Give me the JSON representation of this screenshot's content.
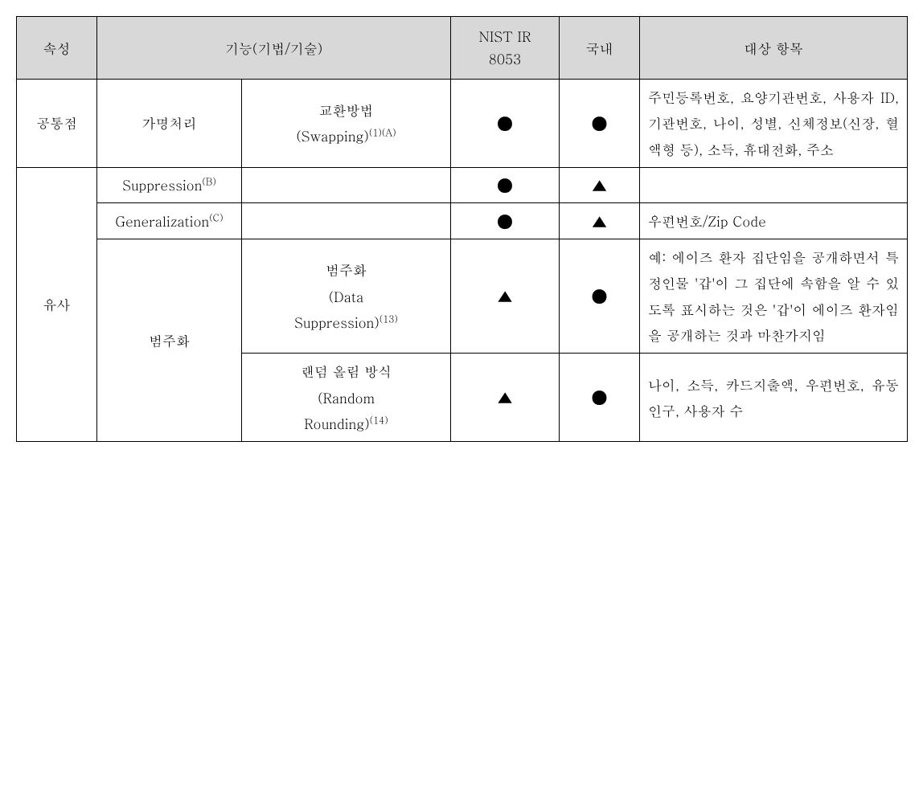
{
  "symbols": {
    "filled_circle": "●",
    "triangle": "▲"
  },
  "colors": {
    "header_bg": "#d8d8d8",
    "cell_bg": "#ffffff",
    "border": "#000000",
    "text": "#000000"
  },
  "header": {
    "attr": "속성",
    "func": "기능(기법/기술)",
    "nist_l1": "NIST IR",
    "nist_l2": "8053",
    "domestic": "국내",
    "target": "대상 항목"
  },
  "rows": {
    "r1": {
      "attr": "공통점",
      "func1": "가명처리",
      "func2_l1": "교환방법",
      "func2_l2a": "(Swapping)",
      "func2_l2sup": "(1)(A)",
      "nist": "●",
      "domestic": "●",
      "target": "주민등록번호, 요양기관번호, 사용자 ID, 기관번호, 나이, 성별, 신체정보(신장, 혈액형 등), 소득, 휴대전화, 주소"
    },
    "r2": {
      "attr": "유사",
      "func_a": "Suppression",
      "func_a_sup": "(B)",
      "nist_a": "●",
      "domestic_a": "▲",
      "target_a": "",
      "func_b": "Generalization",
      "func_b_sup": "(C)",
      "nist_b": "●",
      "domestic_b": "▲",
      "target_b": "우편번호/Zip Code",
      "group_label": "범주화",
      "func_c_l1": "범주화",
      "func_c_l2": "(Data",
      "func_c_l3a": "Suppression)",
      "func_c_l3sup": "(13)",
      "nist_c": "▲",
      "domestic_c": "●",
      "target_c": "예: 에이즈 환자 집단임을 공개하면서 특정인물 '갑'이 그 집단에 속함을 알 수 있도록 표시하는 것은 '갑'이 에이즈 환자임을 공개하는 것과 마찬가지임",
      "func_d_l1": "랜덤 올림 방식",
      "func_d_l2": "(Random",
      "func_d_l3a": "Rounding)",
      "func_d_l3sup": "(14)",
      "nist_d": "▲",
      "domestic_d": "●",
      "target_d": "나이, 소득, 카드지출액, 우편번호, 유동인구, 사용자 수"
    }
  }
}
